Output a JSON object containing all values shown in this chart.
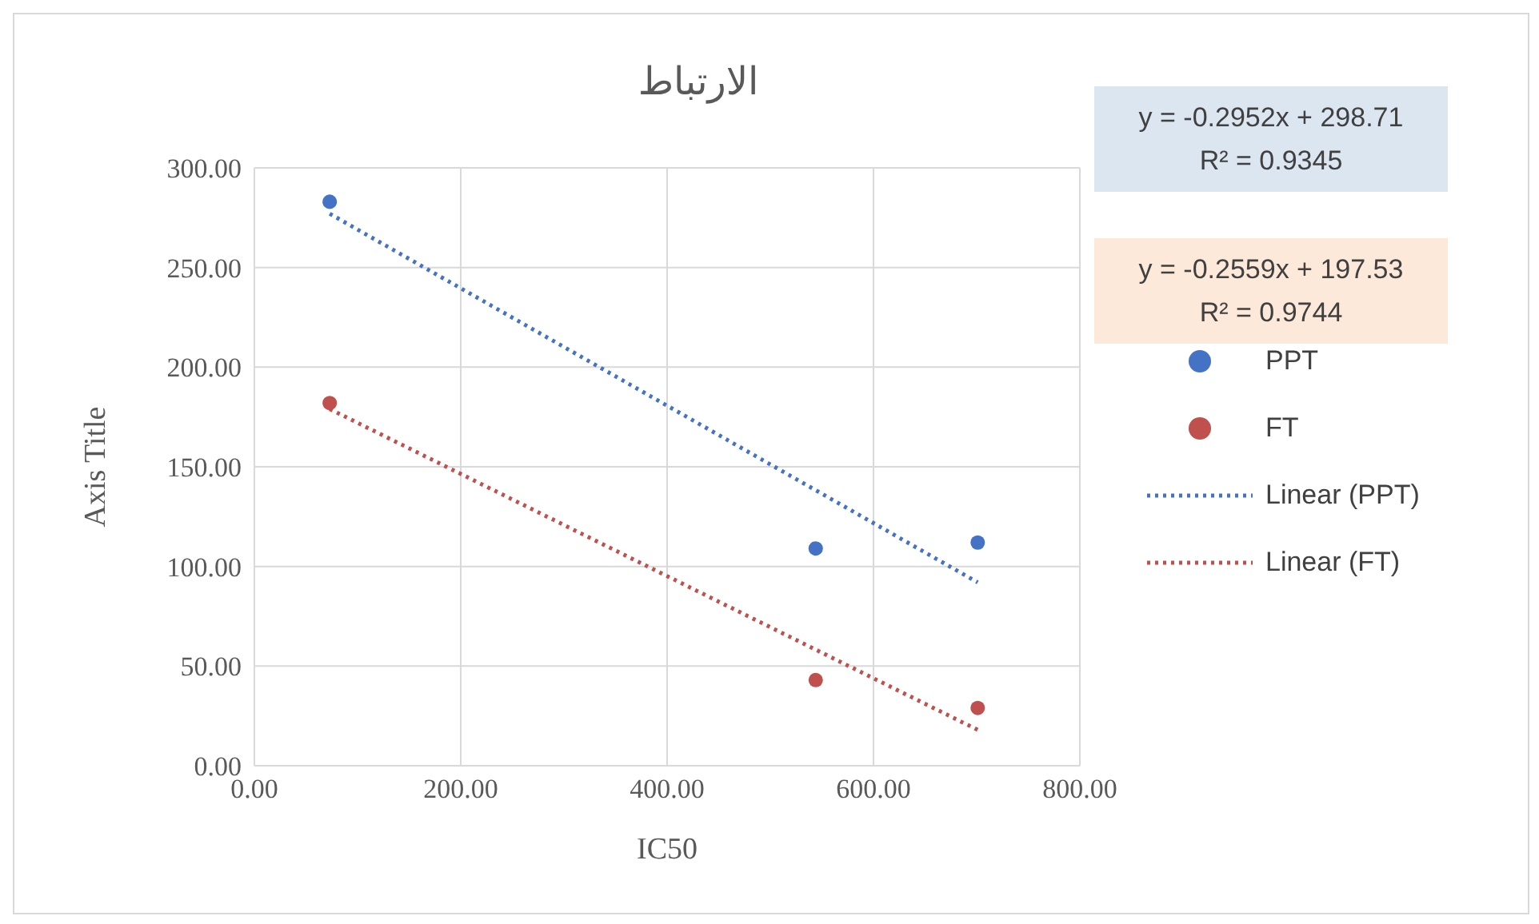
{
  "chart_data": {
    "type": "scatter",
    "title": "الارتباط",
    "xlabel": "IC50",
    "ylabel": "Axis Title",
    "xlim": [
      0,
      800
    ],
    "xticks": [
      {
        "value": 0,
        "label": "0.00"
      },
      {
        "value": 200,
        "label": "200.00"
      },
      {
        "value": 400,
        "label": "400.00"
      },
      {
        "value": 600,
        "label": "600.00"
      },
      {
        "value": 800,
        "label": "800.00"
      }
    ],
    "ylim": [
      0,
      300
    ],
    "yticks": [
      {
        "value": 0,
        "label": "0.00"
      },
      {
        "value": 50,
        "label": "50.00"
      },
      {
        "value": 100,
        "label": "100.00"
      },
      {
        "value": 150,
        "label": "150.00"
      },
      {
        "value": 200,
        "label": "200.00"
      },
      {
        "value": 250,
        "label": "250.00"
      },
      {
        "value": 300,
        "label": "300.00"
      }
    ],
    "grid": true,
    "legend": "right",
    "marker": "circle",
    "series": [
      {
        "name": "PPT",
        "color": "#4472c4",
        "x": [
          73,
          544,
          701
        ],
        "values": [
          283,
          109,
          112
        ]
      },
      {
        "name": "FT",
        "color": "#c0504d",
        "x": [
          73,
          544,
          701
        ],
        "values": [
          182,
          43,
          29
        ]
      },
      {
        "name": "Linear (PPT)",
        "type": "line",
        "color": "#4472c4",
        "marker": "none",
        "line_style": "dotted",
        "x": [
          73,
          701
        ],
        "values": [
          277,
          92
        ]
      },
      {
        "name": "Linear (FT)",
        "type": "line",
        "color": "#c0504d",
        "marker": "none",
        "line_style": "dotted",
        "x": [
          73,
          701
        ],
        "values": [
          179,
          18
        ]
      }
    ],
    "annotations": [
      "y = -0.2952x + 298.71\nR² = 0.9345",
      "y = -0.2559x + 197.53\nR² = 0.9744"
    ]
  }
}
